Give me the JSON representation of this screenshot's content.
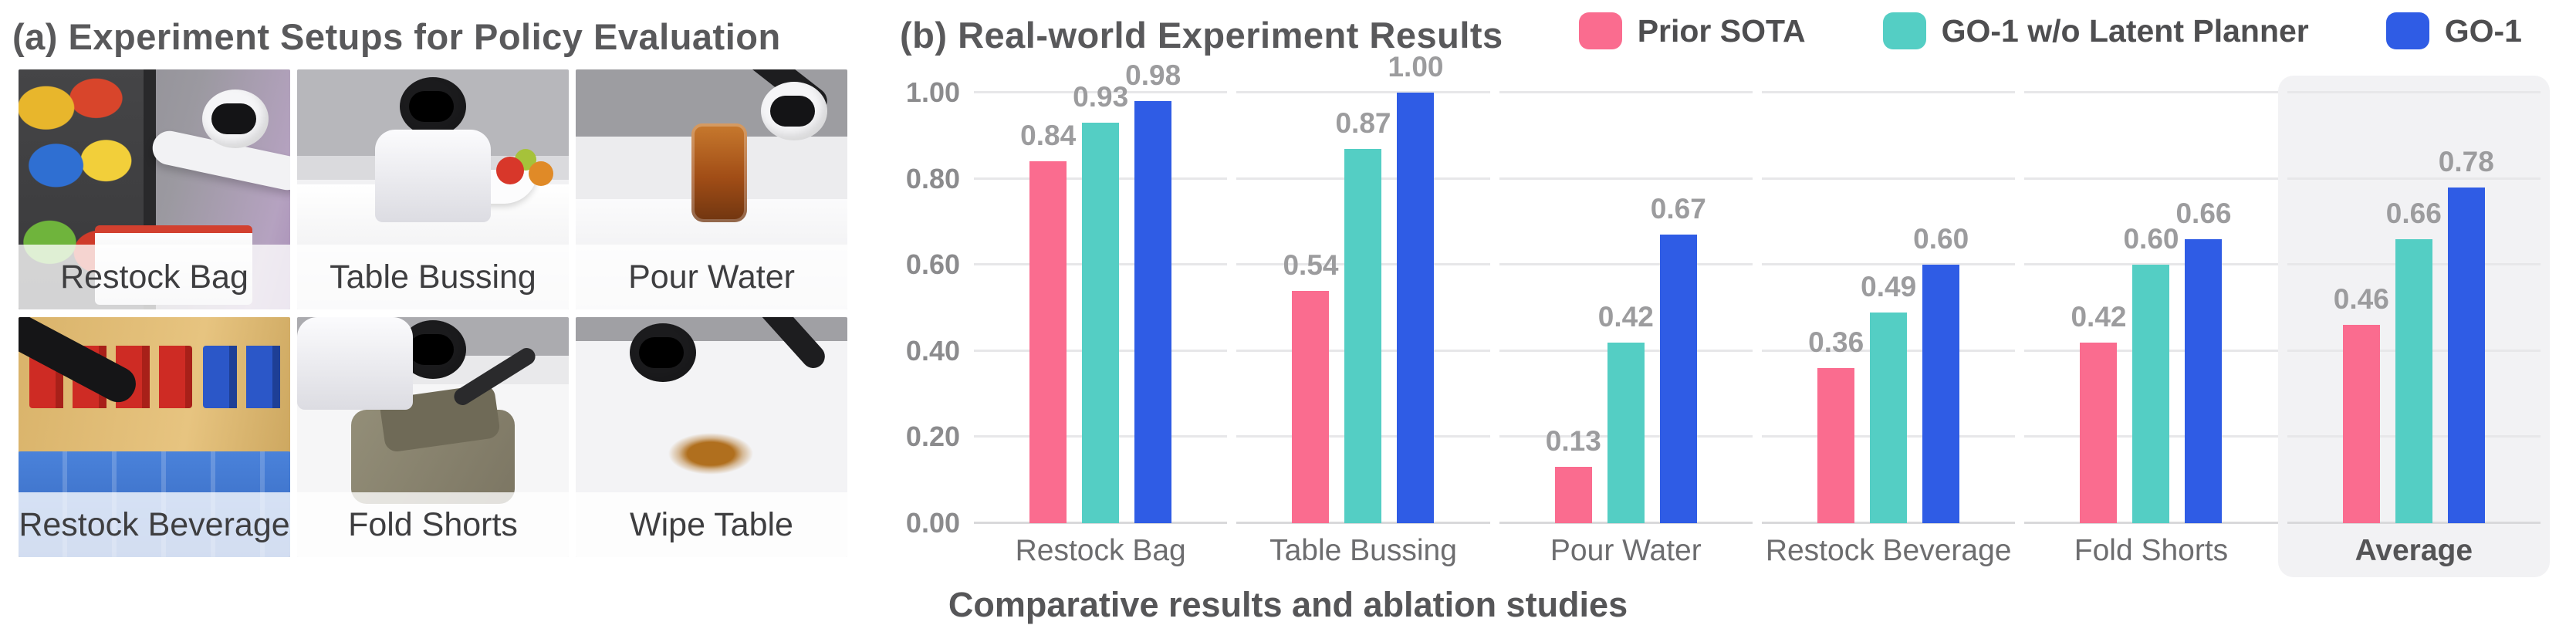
{
  "panel_a": {
    "title": "(a) Experiment Setups for Policy Evaluation",
    "setups": [
      {
        "label": "Restock Bag",
        "scene": "restock-bag"
      },
      {
        "label": "Table Bussing",
        "scene": "table-bussing"
      },
      {
        "label": "Pour Water",
        "scene": "pour-water"
      },
      {
        "label": "Restock Beverage",
        "scene": "restock-beverage"
      },
      {
        "label": "Fold Shorts",
        "scene": "fold-shorts"
      },
      {
        "label": "Wipe Table",
        "scene": "wipe-table"
      }
    ]
  },
  "panel_b": {
    "title": "(b) Real-world Experiment Results",
    "caption": "Comparative results and ablation studies"
  },
  "colors": {
    "prior_sota": "#fa6c8f",
    "go1_wo_latent_planner": "#54cec4",
    "go1": "#2f5ce5",
    "gridline": "#e7e7e9",
    "value_label": "#9c9c9e",
    "average_highlight": "#f2f2f4"
  },
  "chart_data": {
    "type": "bar",
    "title": "(b) Real-world Experiment Results",
    "xlabel": "",
    "ylabel": "",
    "ylim": [
      0,
      1
    ],
    "yticks": [
      "0.00",
      "0.20",
      "0.40",
      "0.60",
      "0.80",
      "1.00"
    ],
    "grid": true,
    "legend_position": "top-right",
    "categories": [
      "Restock Bag",
      "Table Bussing",
      "Pour Water",
      "Restock Beverage",
      "Fold Shorts",
      "Average"
    ],
    "series": [
      {
        "name": "Prior SOTA",
        "color_key": "prior_sota",
        "values": [
          0.84,
          0.54,
          0.13,
          0.36,
          0.42,
          0.46
        ]
      },
      {
        "name": "GO-1 w/o Latent Planner",
        "color_key": "go1_wo_latent_planner",
        "values": [
          0.93,
          0.87,
          0.42,
          0.49,
          0.6,
          0.66
        ]
      },
      {
        "name": "GO-1",
        "color_key": "go1",
        "values": [
          0.98,
          1.0,
          0.67,
          0.6,
          0.66,
          0.78
        ]
      }
    ],
    "highlight_category": "Average"
  }
}
